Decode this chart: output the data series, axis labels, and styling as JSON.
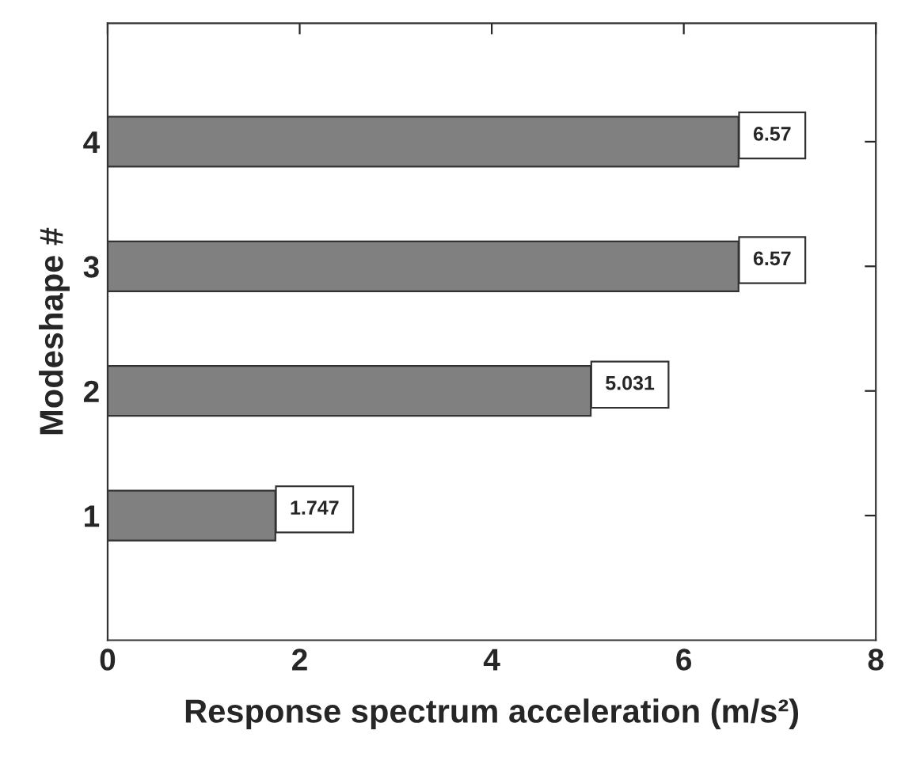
{
  "chart_data": {
    "type": "bar",
    "orientation": "horizontal",
    "xlabel": "Response spectrum acceleration (m/s²)",
    "ylabel": "Modeshape #",
    "categories": [
      "4",
      "3",
      "2",
      "1"
    ],
    "values": [
      6.57,
      6.57,
      5.031,
      1.747
    ],
    "color": "#808080",
    "xlim": [
      0,
      8
    ],
    "xticks": [
      0,
      2,
      4,
      6,
      8
    ],
    "data_labels": true,
    "grid": false,
    "legend": false
  }
}
